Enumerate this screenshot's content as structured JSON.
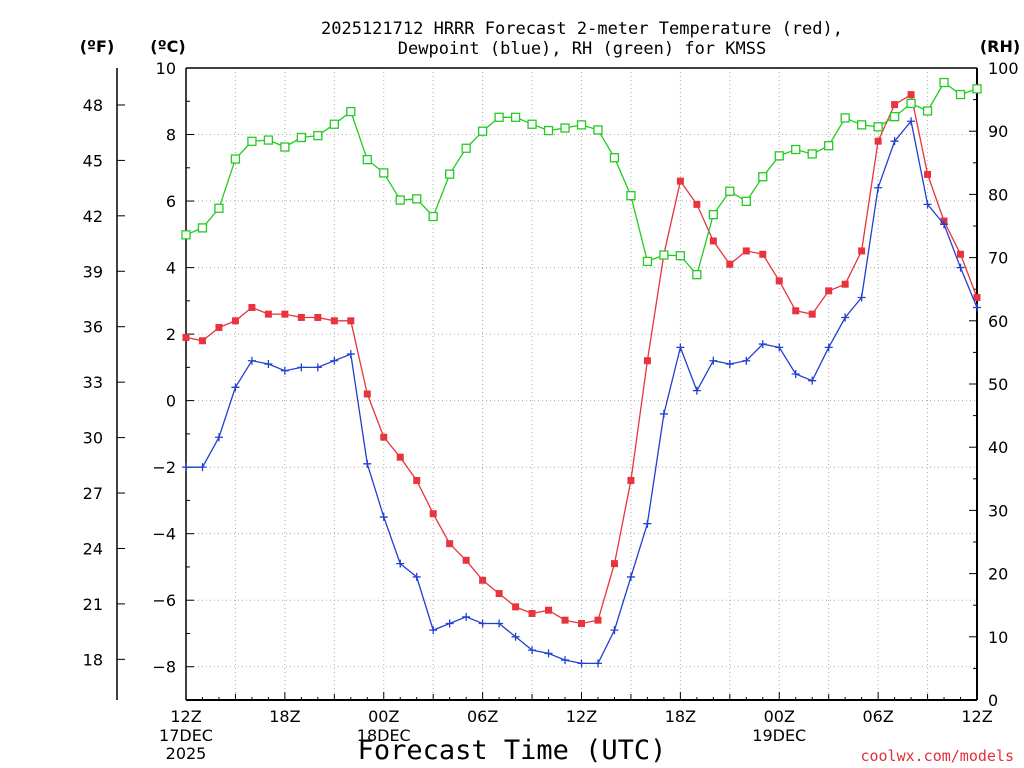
{
  "chart_data": {
    "type": "line",
    "title_line1": "2025121712 HRRR Forecast 2-meter Temperature (red),",
    "title_line2": "Dewpoint (blue), RH (green) for KMSS",
    "unit_f": "(ºF)",
    "unit_c": "(ºC)",
    "unit_rh": "(RH)",
    "xlabel": "Forecast Time (UTC)",
    "credit": "coolwx.com/models",
    "x_range": [
      0,
      48
    ],
    "c_range": [
      -9,
      10
    ],
    "rh_range": [
      0,
      100
    ],
    "f_ticks": [
      "18",
      "21",
      "24",
      "27",
      "30",
      "33",
      "36",
      "39",
      "42",
      "45",
      "48"
    ],
    "c_ticks": [
      "−8",
      "−6",
      "−4",
      "−2",
      "0",
      "2",
      "4",
      "6",
      "8",
      "10"
    ],
    "rh_ticks": [
      "0",
      "10",
      "20",
      "30",
      "40",
      "50",
      "60",
      "70",
      "80",
      "90",
      "100"
    ],
    "x_ticks": [
      {
        "hour": 0,
        "line1": "12Z",
        "line2": "17DEC",
        "line3": "2025"
      },
      {
        "hour": 6,
        "line1": "18Z",
        "line2": "",
        "line3": ""
      },
      {
        "hour": 12,
        "line1": "00Z",
        "line2": "18DEC",
        "line3": ""
      },
      {
        "hour": 18,
        "line1": "06Z",
        "line2": "",
        "line3": ""
      },
      {
        "hour": 24,
        "line1": "12Z",
        "line2": "",
        "line3": ""
      },
      {
        "hour": 30,
        "line1": "18Z",
        "line2": "",
        "line3": ""
      },
      {
        "hour": 36,
        "line1": "00Z",
        "line2": "19DEC",
        "line3": ""
      },
      {
        "hour": 42,
        "line1": "06Z",
        "line2": "",
        "line3": ""
      },
      {
        "hour": 48,
        "line1": "12Z",
        "line2": "",
        "line3": ""
      }
    ],
    "series": [
      {
        "name": "Temperature",
        "units": "C",
        "axis": "left",
        "color": "#e8343c",
        "marker": "filled-square",
        "values": [
          1.9,
          1.8,
          2.2,
          2.4,
          2.8,
          2.6,
          2.6,
          2.5,
          2.5,
          2.4,
          2.4,
          0.2,
          -1.1,
          -1.7,
          -2.4,
          -3.4,
          -4.3,
          -4.8,
          -5.4,
          -5.8,
          -6.2,
          -6.4,
          -6.3,
          -6.6,
          -6.7,
          -6.6,
          -4.9,
          -2.4,
          1.2,
          4.4,
          6.6,
          5.9,
          4.8,
          4.1,
          4.5,
          4.4,
          3.6,
          2.7,
          2.6,
          3.3,
          3.5,
          4.5,
          7.8,
          8.9,
          9.2,
          6.8,
          5.4,
          4.4,
          3.1
        ]
      },
      {
        "name": "Dewpoint",
        "units": "C",
        "axis": "left",
        "color": "#2040d0",
        "marker": "plus",
        "values": [
          -2.0,
          -2.0,
          -1.1,
          0.4,
          1.2,
          1.1,
          0.9,
          1.0,
          1.0,
          1.2,
          1.4,
          -1.9,
          -3.5,
          -4.9,
          -5.3,
          -6.9,
          -6.7,
          -6.5,
          -6.7,
          -6.7,
          -7.1,
          -7.5,
          -7.6,
          -7.8,
          -7.9,
          -7.9,
          -6.9,
          -5.3,
          -3.7,
          -0.4,
          1.6,
          0.3,
          1.2,
          1.1,
          1.2,
          1.7,
          1.6,
          0.8,
          0.6,
          1.6,
          2.5,
          3.1,
          6.4,
          7.8,
          8.4,
          5.9,
          5.3,
          4.0,
          2.8
        ]
      },
      {
        "name": "RH",
        "units": "%",
        "axis": "right",
        "color": "#22cc22",
        "marker": "open-square",
        "values": [
          73.6,
          74.7,
          77.8,
          85.6,
          88.4,
          88.6,
          87.5,
          89.0,
          89.3,
          91.1,
          93.1,
          85.5,
          83.4,
          79.1,
          79.3,
          76.5,
          83.2,
          87.3,
          90.0,
          92.2,
          92.2,
          91.1,
          90.1,
          90.5,
          91.0,
          90.2,
          85.8,
          79.8,
          69.4,
          70.4,
          70.3,
          67.3,
          76.8,
          80.5,
          78.9,
          82.8,
          86.1,
          87.1,
          86.4,
          87.7,
          92.1,
          91.0,
          90.7,
          92.3,
          94.4,
          93.2,
          97.7,
          95.8,
          96.7
        ]
      }
    ]
  }
}
